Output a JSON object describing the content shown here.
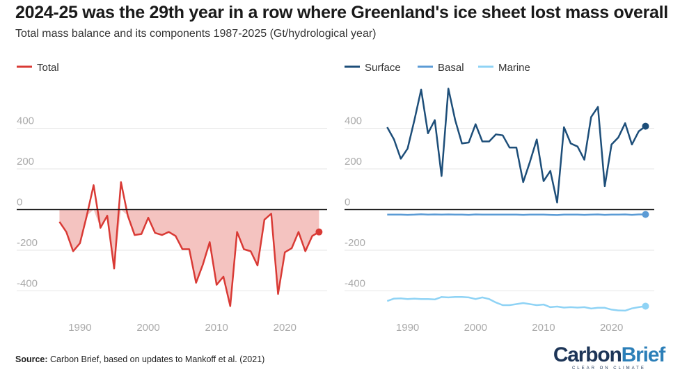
{
  "title": "2024-25 was the 29th year in a row where Greenland's ice sheet lost mass overall",
  "subtitle": "Total mass balance and its components 1987-2025 (Gt/hydrological year)",
  "source_label": "Source:",
  "source_text": "Carbon Brief, based on updates to Mankoff et al. (2021)",
  "logo": {
    "part1": "Carbon",
    "part2": "Brief",
    "tagline": "CLEAR ON CLIMATE"
  },
  "colors": {
    "total": "#d93a35",
    "total_fill": "#f4c3c0",
    "surface": "#1d4e79",
    "basal": "#5b9bd5",
    "marine": "#8fd3f5",
    "grid": "#e6e6e6",
    "tick": "#aaaaaa",
    "zero": "#111111"
  },
  "chart_data": [
    {
      "type": "area",
      "x": [
        1987,
        1988,
        1989,
        1990,
        1991,
        1992,
        1993,
        1994,
        1995,
        1996,
        1997,
        1998,
        1999,
        2000,
        2001,
        2002,
        2003,
        2004,
        2005,
        2006,
        2007,
        2008,
        2009,
        2010,
        2011,
        2012,
        2013,
        2014,
        2015,
        2016,
        2017,
        2018,
        2019,
        2020,
        2021,
        2022,
        2023,
        2024,
        2025
      ],
      "series": [
        {
          "name": "Total",
          "values": [
            -60,
            -110,
            -205,
            -165,
            -30,
            120,
            -90,
            -30,
            -290,
            135,
            -30,
            -125,
            -120,
            -40,
            -115,
            -125,
            -110,
            -130,
            -195,
            -195,
            -360,
            -270,
            -160,
            -370,
            -330,
            -475,
            -110,
            -195,
            -205,
            -275,
            -50,
            -20,
            -415,
            -210,
            -190,
            -110,
            -205,
            -130,
            -110
          ]
        }
      ],
      "xticks": [
        1990,
        2000,
        2010,
        2020
      ],
      "yticks": [
        -400,
        -200,
        0,
        200,
        400
      ],
      "ylim": [
        -480,
        580
      ],
      "xlim": [
        1984,
        2027
      ],
      "legend": "top-left",
      "grid": true
    },
    {
      "type": "line",
      "x": [
        1987,
        1988,
        1989,
        1990,
        1991,
        1992,
        1993,
        1994,
        1995,
        1996,
        1997,
        1998,
        1999,
        2000,
        2001,
        2002,
        2003,
        2004,
        2005,
        2006,
        2007,
        2008,
        2009,
        2010,
        2011,
        2012,
        2013,
        2014,
        2015,
        2016,
        2017,
        2018,
        2019,
        2020,
        2021,
        2022,
        2023,
        2024,
        2025
      ],
      "series": [
        {
          "name": "Surface",
          "values": [
            405,
            345,
            250,
            300,
            440,
            590,
            375,
            440,
            165,
            595,
            440,
            325,
            330,
            420,
            335,
            335,
            370,
            365,
            305,
            305,
            135,
            235,
            345,
            140,
            190,
            35,
            405,
            325,
            310,
            245,
            455,
            505,
            115,
            320,
            355,
            425,
            320,
            385,
            410
          ]
        },
        {
          "name": "Basal",
          "values": [
            -25,
            -25,
            -25,
            -26,
            -25,
            -23,
            -25,
            -24,
            -25,
            -24,
            -25,
            -25,
            -26,
            -24,
            -25,
            -25,
            -25,
            -25,
            -25,
            -25,
            -26,
            -25,
            -25,
            -25,
            -26,
            -27,
            -25,
            -25,
            -25,
            -26,
            -25,
            -24,
            -26,
            -25,
            -25,
            -24,
            -26,
            -24,
            -24
          ]
        },
        {
          "name": "Marine",
          "values": [
            -450,
            -438,
            -437,
            -440,
            -438,
            -440,
            -440,
            -442,
            -430,
            -432,
            -430,
            -430,
            -432,
            -440,
            -432,
            -440,
            -457,
            -470,
            -470,
            -465,
            -460,
            -465,
            -470,
            -467,
            -480,
            -477,
            -482,
            -480,
            -482,
            -480,
            -487,
            -483,
            -483,
            -492,
            -496,
            -497,
            -486,
            -480,
            -475
          ]
        }
      ],
      "xticks": [
        1990,
        2000,
        2010,
        2020
      ],
      "yticks": [
        -400,
        -200,
        0,
        200,
        400
      ],
      "ylim": [
        -480,
        580
      ],
      "xlim": [
        1984,
        2027
      ],
      "legend": "top-left",
      "grid": true
    }
  ]
}
